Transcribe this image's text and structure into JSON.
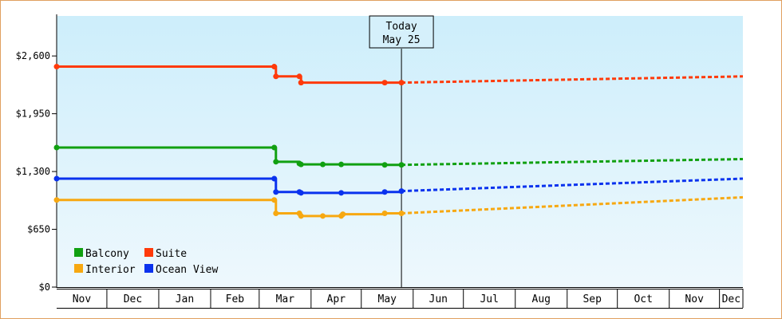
{
  "chart_data": {
    "type": "line",
    "title": "",
    "xlabel": "",
    "ylabel": "",
    "y_ticks": [
      "$0",
      "$650",
      "$1,300",
      "$1,950",
      "$2,600"
    ],
    "ylim": [
      0,
      3050
    ],
    "x_months": [
      "Nov",
      "Dec",
      "Jan",
      "Feb",
      "Mar",
      "Apr",
      "May",
      "Jun",
      "Jul",
      "Aug",
      "Sep",
      "Oct",
      "Nov",
      "Dec"
    ],
    "today": {
      "line1": "Today",
      "line2": "May 25",
      "date": "2024-05-25"
    },
    "x_range": [
      "2023-11-01",
      "2024-12-15"
    ],
    "grid": false,
    "legend_position": "bottom-left",
    "series": [
      {
        "name": "Balcony",
        "color": "#11a011",
        "step": true,
        "points": [
          {
            "x": "2023-11-01",
            "y": 1570
          },
          {
            "x": "2024-03-10",
            "y": 1570
          },
          {
            "x": "2024-03-11",
            "y": 1410
          },
          {
            "x": "2024-03-25",
            "y": 1390
          },
          {
            "x": "2024-03-26",
            "y": 1380
          },
          {
            "x": "2024-04-08",
            "y": 1380
          },
          {
            "x": "2024-04-19",
            "y": 1380
          },
          {
            "x": "2024-05-15",
            "y": 1375
          },
          {
            "x": "2024-05-25",
            "y": 1375
          }
        ],
        "forecast": [
          {
            "x": "2024-05-25",
            "y": 1375
          },
          {
            "x": "2024-12-15",
            "y": 1440
          }
        ]
      },
      {
        "name": "Suite",
        "color": "#ff3a0a",
        "step": true,
        "points": [
          {
            "x": "2023-11-01",
            "y": 2480
          },
          {
            "x": "2024-03-10",
            "y": 2480
          },
          {
            "x": "2024-03-11",
            "y": 2370
          },
          {
            "x": "2024-03-25",
            "y": 2370
          },
          {
            "x": "2024-03-26",
            "y": 2300
          },
          {
            "x": "2024-05-15",
            "y": 2300
          },
          {
            "x": "2024-05-25",
            "y": 2300
          }
        ],
        "forecast": [
          {
            "x": "2024-05-25",
            "y": 2300
          },
          {
            "x": "2024-12-15",
            "y": 2370
          }
        ]
      },
      {
        "name": "Interior",
        "color": "#f7a811",
        "step": true,
        "points": [
          {
            "x": "2023-11-01",
            "y": 980
          },
          {
            "x": "2024-03-10",
            "y": 980
          },
          {
            "x": "2024-03-11",
            "y": 830
          },
          {
            "x": "2024-03-25",
            "y": 830
          },
          {
            "x": "2024-03-26",
            "y": 800
          },
          {
            "x": "2024-04-08",
            "y": 800
          },
          {
            "x": "2024-04-19",
            "y": 800
          },
          {
            "x": "2024-04-20",
            "y": 820
          },
          {
            "x": "2024-05-15",
            "y": 830
          },
          {
            "x": "2024-05-25",
            "y": 830
          }
        ],
        "forecast": [
          {
            "x": "2024-05-25",
            "y": 830
          },
          {
            "x": "2024-12-15",
            "y": 1010
          }
        ]
      },
      {
        "name": "Ocean View",
        "color": "#0a32ee",
        "step": true,
        "points": [
          {
            "x": "2023-11-01",
            "y": 1220
          },
          {
            "x": "2024-03-10",
            "y": 1220
          },
          {
            "x": "2024-03-11",
            "y": 1070
          },
          {
            "x": "2024-03-25",
            "y": 1070
          },
          {
            "x": "2024-03-26",
            "y": 1060
          },
          {
            "x": "2024-04-19",
            "y": 1060
          },
          {
            "x": "2024-05-15",
            "y": 1070
          },
          {
            "x": "2024-05-25",
            "y": 1080
          }
        ],
        "forecast": [
          {
            "x": "2024-05-25",
            "y": 1080
          },
          {
            "x": "2024-12-15",
            "y": 1220
          }
        ]
      }
    ]
  },
  "legend": [
    {
      "name": "Balcony",
      "color": "#11a011"
    },
    {
      "name": "Suite",
      "color": "#ff3a0a"
    },
    {
      "name": "Interior",
      "color": "#f7a811"
    },
    {
      "name": "Ocean View",
      "color": "#0a32ee"
    }
  ]
}
